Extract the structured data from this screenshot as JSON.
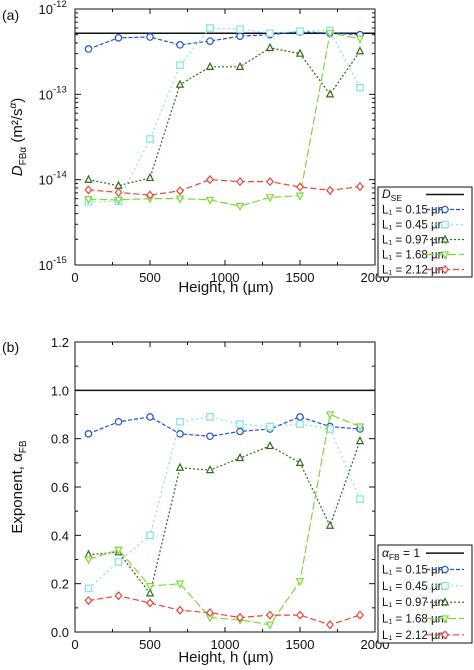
{
  "colors": {
    "blue": "#1f4fd8",
    "cyan": "#7fe6d8",
    "dkgreen": "#2f6b1a",
    "green": "#7fd83a",
    "red": "#e8453c",
    "black": "#111111"
  },
  "chart_data": [
    {
      "panel": "(a)",
      "type": "line",
      "scale": "log",
      "ylabel_main": "D",
      "ylabel_sub": "FBα",
      "ylabel_units": " (m²/s",
      "ylabel_units_sup": "α",
      "ylabel_close": ")",
      "xlabel": "Height, h (µm)",
      "xlim": [
        0,
        2000
      ],
      "ylim": [
        1e-15,
        1e-12
      ],
      "x_ticks": [
        "0",
        "500",
        "1000",
        "1500",
        "2000"
      ],
      "y_ticks": [
        {
          "base": "10",
          "exp": "-15"
        },
        {
          "base": "10",
          "exp": "-14"
        },
        {
          "base": "10",
          "exp": "-13"
        },
        {
          "base": "10",
          "exp": "-12"
        }
      ],
      "reference": {
        "label_main": "D",
        "label_sub": "SE",
        "value": 5.2e-13
      },
      "legend_position": "lower-right",
      "x": [
        90,
        290,
        500,
        700,
        900,
        1100,
        1300,
        1500,
        1700,
        1900
      ],
      "series": [
        {
          "name": "L₁ = 0.15 µm",
          "color_key": "blue",
          "marker": "circle",
          "dash": "4,2",
          "values": [
            3.4e-13,
            4.6e-13,
            4.7e-13,
            3.8e-13,
            4.2e-13,
            4.8e-13,
            5e-13,
            5.4e-13,
            5.2e-13,
            5e-13
          ]
        },
        {
          "name": "L₁ = 0.45 µm",
          "color_key": "cyan",
          "marker": "square",
          "dash": "2,3",
          "values": [
            5.5e-15,
            5.6e-15,
            3e-14,
            2.2e-13,
            6e-13,
            5.8e-13,
            5.2e-13,
            5.5e-13,
            5.6e-13,
            1.2e-13
          ]
        },
        {
          "name": "L₁ = 0.97 µm",
          "color_key": "dkgreen",
          "marker": "triangle",
          "dash": "2,2",
          "values": [
            1e-14,
            8.5e-15,
            1.05e-14,
            1.3e-13,
            2.1e-13,
            2.1e-13,
            3.5e-13,
            3e-13,
            1e-13,
            3.2e-13
          ]
        },
        {
          "name": "L₁ = 1.68 µm",
          "color_key": "green",
          "marker": "triangle-down",
          "dash": "8,3",
          "values": [
            5.9e-15,
            5.8e-15,
            6e-15,
            6e-15,
            5.8e-15,
            4.9e-15,
            6.2e-15,
            6.5e-15,
            5.2e-13,
            4.5e-13
          ]
        },
        {
          "name": "L₁ = 2.12 µm",
          "color_key": "red",
          "marker": "diamond",
          "dash": "6,3",
          "values": [
            7.6e-15,
            7.1e-15,
            6.6e-15,
            7.4e-15,
            1e-14,
            9.5e-15,
            9.5e-15,
            8.2e-15,
            7.5e-15,
            8.3e-15
          ]
        }
      ]
    },
    {
      "panel": "(b)",
      "type": "line",
      "scale": "linear",
      "ylabel": "Exponent, α",
      "ylabel_sub": "FB",
      "xlabel": "Height, h (µm)",
      "xlim": [
        0,
        2000
      ],
      "ylim": [
        0,
        1.2
      ],
      "x_ticks": [
        "0",
        "500",
        "1000",
        "1500",
        "2000"
      ],
      "y_ticks": [
        "0.0",
        "0.2",
        "0.4",
        "0.6",
        "0.8",
        "1.0",
        "1.2"
      ],
      "reference": {
        "label_main": "α",
        "label_sub": "FB",
        "label_tail": " = 1",
        "value": 1.0
      },
      "legend_position": "lower-right",
      "x": [
        90,
        290,
        500,
        700,
        900,
        1100,
        1300,
        1500,
        1700,
        1900
      ],
      "series": [
        {
          "name": "L₁ = 0.15 µm",
          "color_key": "blue",
          "marker": "circle",
          "dash": "4,2",
          "values": [
            0.82,
            0.87,
            0.89,
            0.82,
            0.81,
            0.83,
            0.84,
            0.89,
            0.85,
            0.84
          ]
        },
        {
          "name": "L₁ = 0.45 µm",
          "color_key": "cyan",
          "marker": "square",
          "dash": "2,3",
          "values": [
            0.18,
            0.29,
            0.4,
            0.87,
            0.89,
            0.86,
            0.85,
            0.86,
            0.84,
            0.55
          ]
        },
        {
          "name": "L₁ = 0.97 µm",
          "color_key": "dkgreen",
          "marker": "triangle",
          "dash": "2,2",
          "values": [
            0.32,
            0.33,
            0.16,
            0.68,
            0.67,
            0.72,
            0.77,
            0.7,
            0.44,
            0.79
          ]
        },
        {
          "name": "L₁ = 1.68 µm",
          "color_key": "green",
          "marker": "triangle-down",
          "dash": "8,3",
          "values": [
            0.3,
            0.34,
            0.19,
            0.2,
            0.06,
            0.05,
            0.03,
            0.21,
            0.9,
            0.85
          ]
        },
        {
          "name": "L₁ = 2.12 µm",
          "color_key": "red",
          "marker": "diamond",
          "dash": "6,3",
          "values": [
            0.13,
            0.15,
            0.12,
            0.09,
            0.08,
            0.06,
            0.07,
            0.07,
            0.03,
            0.07
          ]
        }
      ]
    }
  ]
}
